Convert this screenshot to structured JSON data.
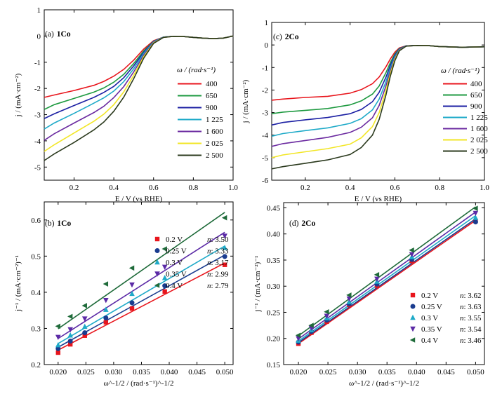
{
  "chart_data": [
    {
      "id": "a",
      "type": "line",
      "panel_tag": "(a)",
      "panel_name": "1Co",
      "xlabel": "E / V (vs RHE)",
      "ylabel": "j / (mA·cm⁻²)",
      "xlim": [
        0.05,
        1.0
      ],
      "ylim": [
        -5.5,
        1
      ],
      "xticks": [
        0.2,
        0.4,
        0.6,
        0.8,
        1.0
      ],
      "xtick_labels": [
        "0.2",
        "0.4",
        "0.6",
        "0.8",
        "1.0"
      ],
      "yticks": [
        1,
        0,
        -1,
        -2,
        -3,
        -4,
        -5
      ],
      "ytick_labels": [
        "1",
        "0",
        "-1",
        "-2",
        "-3",
        "-4",
        "-5"
      ],
      "legend_title": "ω / (rad·s⁻¹)",
      "legend_position": "right",
      "series": [
        {
          "name": "400",
          "color": "#e8151c",
          "x": [
            0.05,
            0.1,
            0.2,
            0.3,
            0.35,
            0.4,
            0.45,
            0.5,
            0.55,
            0.6,
            0.65,
            0.7,
            0.75,
            0.8,
            0.85,
            0.9,
            0.95,
            1.0
          ],
          "y": [
            -2.34,
            -2.25,
            -2.08,
            -1.88,
            -1.73,
            -1.53,
            -1.27,
            -0.92,
            -0.5,
            -0.18,
            -0.04,
            -0.01,
            -0.02,
            -0.05,
            -0.08,
            -0.1,
            -0.08,
            0.0
          ]
        },
        {
          "name": "650",
          "color": "#1e9a40",
          "x": [
            0.05,
            0.1,
            0.2,
            0.3,
            0.35,
            0.4,
            0.45,
            0.5,
            0.55,
            0.6,
            0.65,
            0.7,
            0.75,
            0.8,
            0.85,
            0.9,
            0.95,
            1.0
          ],
          "y": [
            -2.8,
            -2.62,
            -2.38,
            -2.14,
            -1.98,
            -1.76,
            -1.46,
            -1.05,
            -0.57,
            -0.2,
            -0.04,
            -0.01,
            -0.02,
            -0.05,
            -0.08,
            -0.1,
            -0.08,
            0.0
          ]
        },
        {
          "name": "900",
          "color": "#1b1fa3",
          "x": [
            0.05,
            0.1,
            0.2,
            0.3,
            0.35,
            0.4,
            0.45,
            0.5,
            0.55,
            0.6,
            0.65,
            0.7,
            0.75,
            0.8,
            0.85,
            0.9,
            0.95,
            1.0
          ],
          "y": [
            -3.15,
            -2.97,
            -2.65,
            -2.34,
            -2.15,
            -1.92,
            -1.59,
            -1.14,
            -0.62,
            -0.21,
            -0.04,
            -0.01,
            -0.02,
            -0.05,
            -0.08,
            -0.1,
            -0.08,
            0.0
          ]
        },
        {
          "name": "1 225",
          "color": "#1eaac8",
          "x": [
            0.05,
            0.1,
            0.2,
            0.3,
            0.35,
            0.4,
            0.45,
            0.5,
            0.55,
            0.6,
            0.65,
            0.7,
            0.75,
            0.8,
            0.85,
            0.9,
            0.95,
            1.0
          ],
          "y": [
            -3.55,
            -3.32,
            -2.95,
            -2.56,
            -2.36,
            -2.1,
            -1.74,
            -1.25,
            -0.67,
            -0.22,
            -0.04,
            -0.01,
            -0.02,
            -0.05,
            -0.08,
            -0.1,
            -0.08,
            0.0
          ]
        },
        {
          "name": "1 600",
          "color": "#6b2aa0",
          "x": [
            0.05,
            0.1,
            0.2,
            0.3,
            0.35,
            0.4,
            0.45,
            0.5,
            0.55,
            0.6,
            0.65,
            0.7,
            0.75,
            0.8,
            0.85,
            0.9,
            0.95,
            1.0
          ],
          "y": [
            -3.98,
            -3.73,
            -3.32,
            -2.92,
            -2.68,
            -2.35,
            -1.93,
            -1.37,
            -0.73,
            -0.24,
            -0.05,
            -0.01,
            -0.02,
            -0.05,
            -0.08,
            -0.1,
            -0.08,
            0.0
          ]
        },
        {
          "name": "2 025",
          "color": "#f2e626",
          "x": [
            0.05,
            0.1,
            0.2,
            0.3,
            0.35,
            0.4,
            0.45,
            0.5,
            0.55,
            0.6,
            0.65,
            0.7,
            0.75,
            0.8,
            0.85,
            0.9,
            0.95,
            1.0
          ],
          "y": [
            -4.4,
            -4.15,
            -3.7,
            -3.25,
            -2.98,
            -2.62,
            -2.13,
            -1.5,
            -0.79,
            -0.26,
            -0.05,
            -0.01,
            -0.02,
            -0.05,
            -0.08,
            -0.1,
            -0.08,
            0.0
          ]
        },
        {
          "name": "2 500",
          "color": "#2b3a1e",
          "x": [
            0.05,
            0.1,
            0.2,
            0.3,
            0.35,
            0.4,
            0.45,
            0.5,
            0.55,
            0.6,
            0.65,
            0.7,
            0.75,
            0.8,
            0.85,
            0.9,
            0.95,
            1.0
          ],
          "y": [
            -4.75,
            -4.5,
            -4.06,
            -3.58,
            -3.28,
            -2.87,
            -2.33,
            -1.63,
            -0.85,
            -0.28,
            -0.05,
            -0.01,
            -0.02,
            -0.05,
            -0.08,
            -0.1,
            -0.08,
            0.0
          ]
        }
      ]
    },
    {
      "id": "c",
      "type": "line",
      "panel_tag": "(c)",
      "panel_name": "2Co",
      "xlabel": "E / V (vs RHE)",
      "ylabel": "j / (mA·cm⁻²)",
      "xlim": [
        0.05,
        1.0
      ],
      "ylim": [
        -6,
        1
      ],
      "xticks": [
        0.2,
        0.4,
        0.6,
        0.8,
        1.0
      ],
      "xtick_labels": [
        "0.2",
        "0.4",
        "0.6",
        "0.8",
        "1.0"
      ],
      "yticks": [
        1,
        0,
        -1,
        -2,
        -3,
        -4,
        -5,
        -6
      ],
      "ytick_labels": [
        "1",
        "0",
        "-1",
        "-2",
        "-3",
        "-4",
        "-5",
        "-6"
      ],
      "legend_title": "ω / (rad·s⁻¹)",
      "legend_position": "right",
      "series": [
        {
          "name": "400",
          "color": "#e8151c",
          "x": [
            0.05,
            0.1,
            0.2,
            0.3,
            0.4,
            0.45,
            0.5,
            0.53,
            0.56,
            0.58,
            0.6,
            0.62,
            0.65,
            0.7,
            0.75,
            0.8,
            0.9,
            1.0
          ],
          "y": [
            -2.45,
            -2.4,
            -2.33,
            -2.28,
            -2.14,
            -1.98,
            -1.72,
            -1.42,
            -0.97,
            -0.62,
            -0.32,
            -0.13,
            -0.04,
            -0.02,
            -0.03,
            -0.07,
            -0.1,
            -0.08
          ]
        },
        {
          "name": "650",
          "color": "#1e9a40",
          "x": [
            0.05,
            0.1,
            0.2,
            0.3,
            0.4,
            0.45,
            0.5,
            0.53,
            0.56,
            0.58,
            0.6,
            0.62,
            0.65,
            0.7,
            0.75,
            0.8,
            0.9,
            1.0
          ],
          "y": [
            -3.05,
            -2.98,
            -2.9,
            -2.82,
            -2.66,
            -2.48,
            -2.18,
            -1.82,
            -1.23,
            -0.78,
            -0.4,
            -0.16,
            -0.04,
            -0.02,
            -0.03,
            -0.07,
            -0.1,
            -0.08
          ]
        },
        {
          "name": "900",
          "color": "#1b1fa3",
          "x": [
            0.05,
            0.1,
            0.2,
            0.3,
            0.4,
            0.45,
            0.5,
            0.53,
            0.56,
            0.58,
            0.6,
            0.62,
            0.65,
            0.7,
            0.75,
            0.8,
            0.9,
            1.0
          ],
          "y": [
            -3.55,
            -3.44,
            -3.32,
            -3.22,
            -3.05,
            -2.86,
            -2.52,
            -2.1,
            -1.43,
            -0.9,
            -0.46,
            -0.18,
            -0.04,
            -0.02,
            -0.03,
            -0.07,
            -0.1,
            -0.08
          ]
        },
        {
          "name": "1 225",
          "color": "#1eaac8",
          "x": [
            0.05,
            0.1,
            0.2,
            0.3,
            0.4,
            0.45,
            0.5,
            0.53,
            0.56,
            0.58,
            0.6,
            0.62,
            0.65,
            0.7,
            0.75,
            0.8,
            0.9,
            1.0
          ],
          "y": [
            -4.05,
            -3.93,
            -3.8,
            -3.68,
            -3.48,
            -3.27,
            -2.88,
            -2.4,
            -1.63,
            -1.02,
            -0.52,
            -0.2,
            -0.05,
            -0.02,
            -0.03,
            -0.07,
            -0.1,
            -0.08
          ]
        },
        {
          "name": "1 600",
          "color": "#6b2aa0",
          "x": [
            0.05,
            0.1,
            0.2,
            0.3,
            0.4,
            0.45,
            0.5,
            0.53,
            0.56,
            0.58,
            0.6,
            0.62,
            0.65,
            0.7,
            0.75,
            0.8,
            0.9,
            1.0
          ],
          "y": [
            -4.5,
            -4.38,
            -4.24,
            -4.1,
            -3.88,
            -3.65,
            -3.23,
            -2.68,
            -1.82,
            -1.14,
            -0.58,
            -0.22,
            -0.05,
            -0.02,
            -0.03,
            -0.07,
            -0.1,
            -0.08
          ]
        },
        {
          "name": "2 025",
          "color": "#f2e626",
          "x": [
            0.05,
            0.1,
            0.2,
            0.3,
            0.4,
            0.45,
            0.5,
            0.53,
            0.56,
            0.58,
            0.6,
            0.62,
            0.65,
            0.7,
            0.75,
            0.8,
            0.9,
            1.0
          ],
          "y": [
            -5.0,
            -4.88,
            -4.74,
            -4.6,
            -4.4,
            -4.12,
            -3.62,
            -3.0,
            -2.02,
            -1.26,
            -0.63,
            -0.24,
            -0.05,
            -0.02,
            -0.03,
            -0.07,
            -0.1,
            -0.08
          ]
        },
        {
          "name": "2 500",
          "color": "#2b3a1e",
          "x": [
            0.05,
            0.1,
            0.2,
            0.3,
            0.4,
            0.45,
            0.5,
            0.53,
            0.56,
            0.58,
            0.6,
            0.62,
            0.65,
            0.7,
            0.75,
            0.8,
            0.9,
            1.0
          ],
          "y": [
            -5.5,
            -5.4,
            -5.25,
            -5.1,
            -4.86,
            -4.55,
            -4.0,
            -3.3,
            -2.22,
            -1.38,
            -0.7,
            -0.26,
            -0.05,
            -0.02,
            -0.03,
            -0.07,
            -0.1,
            -0.08
          ]
        }
      ]
    },
    {
      "id": "b",
      "type": "scatter",
      "panel_tag": "(b)",
      "panel_name": "1Co",
      "xlabel": "ω^-1/2 / (rad·s⁻¹)^-1/2",
      "ylabel": "j⁻¹ / (mA·cm⁻²)⁻¹",
      "xlim": [
        0.0175,
        0.0515
      ],
      "ylim": [
        0.2,
        0.65
      ],
      "xticks": [
        0.02,
        0.025,
        0.03,
        0.035,
        0.04,
        0.045,
        0.05
      ],
      "xtick_labels": [
        "0.020",
        "0.025",
        "0.030",
        "0.035",
        "0.040",
        "0.045",
        "0.050"
      ],
      "yticks": [
        0.2,
        0.3,
        0.4,
        0.5,
        0.6
      ],
      "ytick_labels": [
        "0.2",
        "0.3",
        "0.4",
        "0.5",
        "0.6"
      ],
      "x": [
        0.02,
        0.0222,
        0.0248,
        0.0286,
        0.0333,
        0.0392,
        0.05
      ],
      "legend_position": "lower-right",
      "series": [
        {
          "name": "0.2 V",
          "n_label": "n",
          "n_value": ": 3.50",
          "marker": "square",
          "color": "#e8151c",
          "y": [
            0.233,
            0.256,
            0.28,
            0.317,
            0.355,
            0.402,
            0.476
          ],
          "fit": [
            0.24,
            0.481
          ]
        },
        {
          "name": "0.25 V",
          "n_label": "n",
          "n_value": ": 3.33",
          "marker": "circle",
          "color": "#1a3c8f",
          "y": [
            0.244,
            0.265,
            0.288,
            0.329,
            0.371,
            0.418,
            0.499
          ],
          "fit": [
            0.248,
            0.503
          ]
        },
        {
          "name": "0.3 V",
          "n_label": "n",
          "n_value": ": 3.17",
          "marker": "triangle-up",
          "color": "#1eaac8",
          "y": [
            0.254,
            0.281,
            0.305,
            0.352,
            0.396,
            0.44,
            0.523
          ],
          "fit": [
            0.258,
            0.528
          ]
        },
        {
          "name": "0.35 V",
          "n_label": "n",
          "n_value": ": 2.99",
          "marker": "triangle-down",
          "color": "#5b2aa6",
          "y": [
            0.276,
            0.297,
            0.327,
            0.378,
            0.421,
            0.47,
            0.556
          ],
          "fit": [
            0.272,
            0.566
          ]
        },
        {
          "name": "0.4 V",
          "n_label": "n",
          "n_value": ": 2.79",
          "marker": "triangle-left",
          "color": "#1f6b3a",
          "y": [
            0.306,
            0.333,
            0.363,
            0.423,
            0.467,
            0.52,
            0.606
          ],
          "fit": [
            0.299,
            0.621
          ]
        }
      ]
    },
    {
      "id": "d",
      "type": "scatter",
      "panel_tag": "(d)",
      "panel_name": "2Co",
      "xlabel": "ω^-1/2 / (rad·s⁻¹)^-1/2",
      "ylabel": "j⁻¹ / (mA·cm⁻²)⁻¹",
      "xlim": [
        0.0175,
        0.0515
      ],
      "ylim": [
        0.15,
        0.46
      ],
      "xticks": [
        0.02,
        0.025,
        0.03,
        0.035,
        0.04,
        0.045,
        0.05
      ],
      "xtick_labels": [
        "0.020",
        "0.025",
        "0.030",
        "0.035",
        "0.040",
        "0.045",
        "0.050"
      ],
      "yticks": [
        0.15,
        0.2,
        0.25,
        0.3,
        0.35,
        0.4,
        0.45
      ],
      "ytick_labels": [
        "0.15",
        "0.20",
        "0.25",
        "0.30",
        "0.35",
        "0.40",
        "0.45"
      ],
      "x": [
        0.02,
        0.0222,
        0.0248,
        0.0286,
        0.0333,
        0.0392,
        0.05
      ],
      "legend_position": "lower-right",
      "series": [
        {
          "name": "0.2 V",
          "n_label": "n",
          "n_value": ": 3.62",
          "marker": "square",
          "color": "#e8151c",
          "y": [
            0.19,
            0.211,
            0.232,
            0.264,
            0.301,
            0.348,
            0.425
          ],
          "fit": [
            0.19,
            0.426
          ]
        },
        {
          "name": "0.25 V",
          "n_label": "n",
          "n_value": ": 3.63",
          "marker": "circle",
          "color": "#1a3c8f",
          "y": [
            0.193,
            0.213,
            0.235,
            0.266,
            0.304,
            0.351,
            0.423
          ],
          "fit": [
            0.192,
            0.429
          ]
        },
        {
          "name": "0.3 V",
          "n_label": "n",
          "n_value": ": 3.55",
          "marker": "triangle-up",
          "color": "#1eaac8",
          "y": [
            0.196,
            0.216,
            0.239,
            0.27,
            0.309,
            0.356,
            0.431
          ],
          "fit": [
            0.195,
            0.435
          ]
        },
        {
          "name": "0.35 V",
          "n_label": "n",
          "n_value": ": 3.54",
          "marker": "triangle-down",
          "color": "#5b2aa6",
          "y": [
            0.2,
            0.22,
            0.243,
            0.276,
            0.314,
            0.361,
            0.44
          ],
          "fit": [
            0.199,
            0.442
          ]
        },
        {
          "name": "0.4 V",
          "n_label": "n",
          "n_value": ": 3.46",
          "marker": "triangle-left",
          "color": "#1f6b3a",
          "y": [
            0.206,
            0.225,
            0.251,
            0.283,
            0.322,
            0.369,
            0.449
          ],
          "fit": [
            0.205,
            0.452
          ]
        }
      ]
    }
  ]
}
